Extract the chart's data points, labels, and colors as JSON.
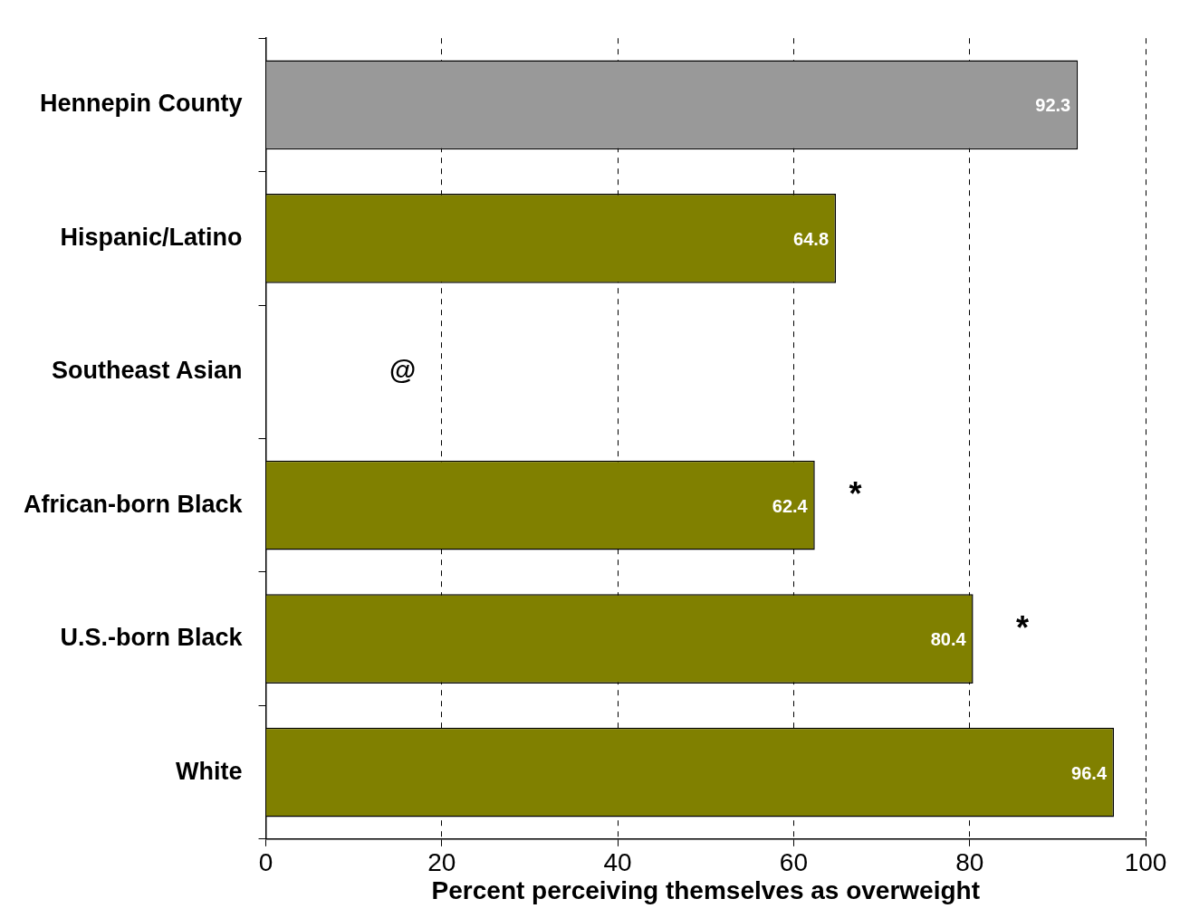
{
  "chart_data": {
    "type": "bar",
    "orientation": "horizontal",
    "xlabel": "Percent perceiving themselves as overweight",
    "categories": [
      "Hennepin County",
      "Hispanic/Latino",
      "Southeast Asian",
      "African-born Black",
      "U.S.-born Black",
      "White"
    ],
    "values": [
      92.3,
      64.8,
      null,
      62.4,
      80.4,
      96.4
    ],
    "colors": [
      "#999999",
      "#808000",
      "#808000",
      "#808000",
      "#808000",
      "#808000"
    ],
    "xlim": [
      0,
      100
    ],
    "xticks": [
      0,
      20,
      40,
      60,
      80,
      100
    ],
    "grid": "x",
    "data_labels": true,
    "annotations": [
      "@",
      "*",
      "*"
    ]
  }
}
